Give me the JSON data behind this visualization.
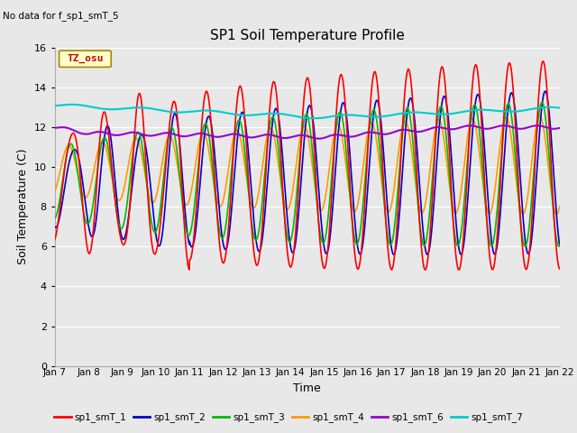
{
  "title": "SP1 Soil Temperature Profile",
  "xlabel": "Time",
  "ylabel": "Soil Temperature (C)",
  "no_data_text": "No data for f_sp1_smT_5",
  "tz_label": "TZ_osu",
  "ylim": [
    0,
    16
  ],
  "yticks": [
    0,
    2,
    4,
    6,
    8,
    10,
    12,
    14,
    16
  ],
  "x_labels": [
    "Jan 7",
    "Jan 8",
    "Jan 9",
    "Jan 10",
    "Jan 11",
    "Jan 12",
    "Jan 13",
    "Jan 14",
    "Jan 15",
    "Jan 16",
    "Jan 17",
    "Jan 18",
    "Jan 19",
    "Jan 20",
    "Jan 21",
    "Jan 22"
  ],
  "bg_color": "#e8e8e8",
  "series_colors": [
    "#ff0000",
    "#0000cc",
    "#00bb00",
    "#ff9900",
    "#9900cc",
    "#00cccc"
  ],
  "series_names": [
    "sp1_smT_1",
    "sp1_smT_2",
    "sp1_smT_3",
    "sp1_smT_4",
    "sp1_smT_6",
    "sp1_smT_7"
  ],
  "lw": 1.2
}
